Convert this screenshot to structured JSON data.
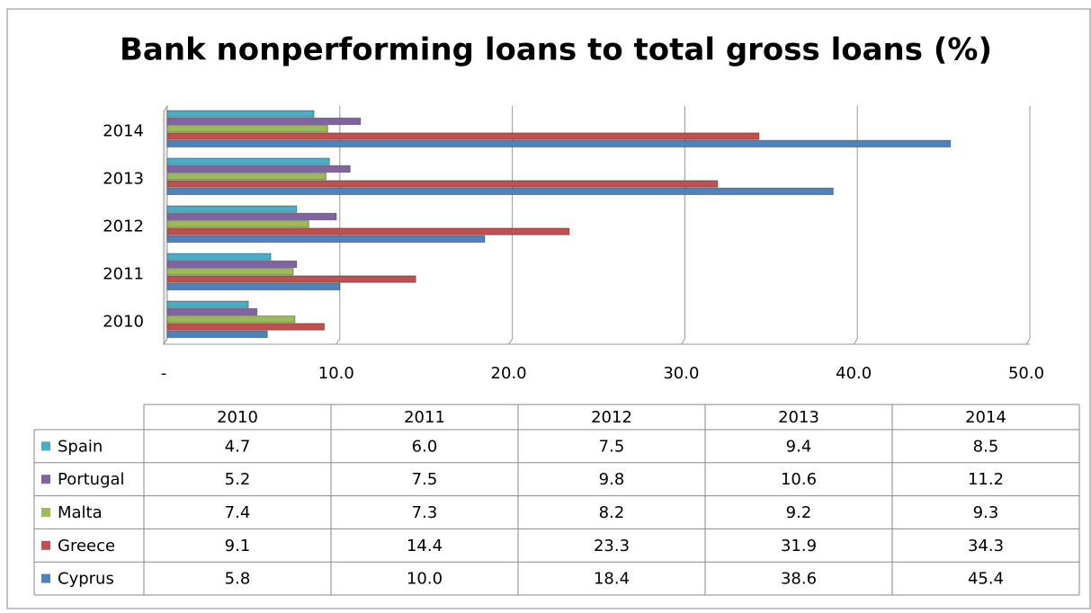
{
  "chart_data": {
    "type": "bar",
    "orientation": "horizontal",
    "title": "Bank nonperforming loans to total gross loans (%)",
    "categories": [
      "2010",
      "2011",
      "2012",
      "2013",
      "2014"
    ],
    "series": [
      {
        "name": "Spain",
        "color": "#4bacc6",
        "values": [
          4.7,
          6.0,
          7.5,
          9.4,
          8.5
        ],
        "value_labels": [
          "4.7",
          "6.0",
          "7.5",
          "9.4",
          "8.5"
        ]
      },
      {
        "name": "Portugal",
        "color": "#8064a2",
        "values": [
          5.2,
          7.5,
          9.8,
          10.6,
          11.2
        ],
        "value_labels": [
          "5.2",
          "7.5",
          "9.8",
          "10.6",
          "11.2"
        ]
      },
      {
        "name": "Malta",
        "color": "#9bbb59",
        "values": [
          7.4,
          7.3,
          8.2,
          9.2,
          9.3
        ],
        "value_labels": [
          "7.4",
          "7.3",
          "8.2",
          "9.2",
          "9.3"
        ]
      },
      {
        "name": "Greece",
        "color": "#c0504d",
        "values": [
          9.1,
          14.4,
          23.3,
          31.9,
          34.3
        ],
        "value_labels": [
          "9.1",
          "14.4",
          "23.3",
          "31.9",
          "34.3"
        ]
      },
      {
        "name": "Cyprus",
        "color": "#4f81bd",
        "values": [
          5.8,
          10.0,
          18.4,
          38.6,
          45.4
        ],
        "value_labels": [
          "5.8",
          "10.0",
          "18.4",
          "38.6",
          "45.4"
        ]
      }
    ],
    "xlim": [
      0,
      50
    ],
    "xticks": [
      {
        "value": 0,
        "label": "-"
      },
      {
        "value": 10,
        "label": "10.0"
      },
      {
        "value": 20,
        "label": "20.0"
      },
      {
        "value": 30,
        "label": "30.0"
      },
      {
        "value": 40,
        "label": "40.0"
      },
      {
        "value": 50,
        "label": "50.0"
      }
    ],
    "grid": true,
    "legend": "table"
  }
}
